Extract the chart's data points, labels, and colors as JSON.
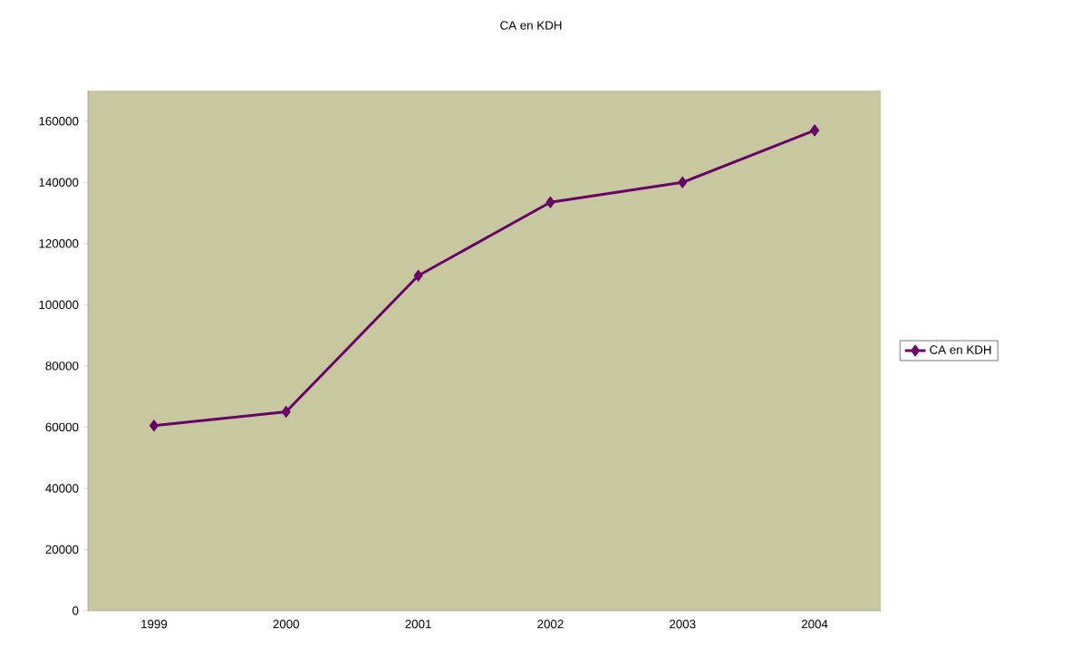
{
  "chart_data": {
    "type": "line",
    "title": "CA en KDH",
    "categories": [
      "1999",
      "2000",
      "2001",
      "2002",
      "2003",
      "2004"
    ],
    "series": [
      {
        "name": "CA en KDH",
        "color": "#660066",
        "values": [
          60500,
          65000,
          109500,
          133500,
          140000,
          157000
        ]
      }
    ],
    "ylim": [
      0,
      170000
    ],
    "yticks": [
      0,
      20000,
      40000,
      60000,
      80000,
      100000,
      120000,
      140000,
      160000
    ],
    "grid": false,
    "legend": "right",
    "marker": "diamond",
    "line_style": "solid"
  }
}
